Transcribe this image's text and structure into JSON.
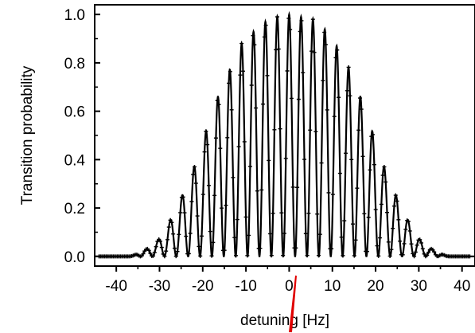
{
  "chart_data": {
    "type": "line",
    "title": "",
    "xlabel": "detuning [Hz]",
    "ylabel": "Transition probability",
    "xlim": [
      -45,
      43
    ],
    "ylim": [
      -0.04,
      1.04
    ],
    "xticks": [
      -40,
      -30,
      -20,
      -10,
      0,
      10,
      20,
      30,
      40
    ],
    "xtick_labels": [
      "-40",
      "-30",
      "-20",
      "-10",
      "0",
      "10",
      "20",
      "30",
      "40"
    ],
    "yticks": [
      0.0,
      0.2,
      0.4,
      0.6,
      0.8,
      1.0
    ],
    "ytick_labels": [
      "0.0",
      "0.2",
      "0.4",
      "0.6",
      "0.8",
      "1.0"
    ],
    "grid": false,
    "legend": "none",
    "series": [
      {
        "style": "solid line with dense cross markers",
        "color": "#000000",
        "fringe_spacing_hz": 2.75,
        "envelope_peaks": [
          {
            "x": -33.0,
            "y": 0.03
          },
          {
            "x": -30.2,
            "y": 0.07
          },
          {
            "x": -27.5,
            "y": 0.15
          },
          {
            "x": -24.8,
            "y": 0.25
          },
          {
            "x": -22.0,
            "y": 0.37
          },
          {
            "x": -19.2,
            "y": 0.52
          },
          {
            "x": -16.5,
            "y": 0.66
          },
          {
            "x": -13.8,
            "y": 0.77
          },
          {
            "x": -11.0,
            "y": 0.88
          },
          {
            "x": -8.2,
            "y": 0.93
          },
          {
            "x": -5.5,
            "y": 0.97
          },
          {
            "x": -2.8,
            "y": 0.99
          },
          {
            "x": 0.0,
            "y": 1.0
          },
          {
            "x": 2.8,
            "y": 0.99
          },
          {
            "x": 5.5,
            "y": 0.98
          },
          {
            "x": 8.2,
            "y": 0.94
          },
          {
            "x": 11.0,
            "y": 0.87
          },
          {
            "x": 13.8,
            "y": 0.78
          },
          {
            "x": 16.5,
            "y": 0.66
          },
          {
            "x": 19.2,
            "y": 0.52
          },
          {
            "x": 22.0,
            "y": 0.37
          },
          {
            "x": 24.8,
            "y": 0.25
          },
          {
            "x": 27.5,
            "y": 0.15
          },
          {
            "x": 30.2,
            "y": 0.07
          },
          {
            "x": 33.0,
            "y": 0.03
          }
        ]
      }
    ]
  }
}
